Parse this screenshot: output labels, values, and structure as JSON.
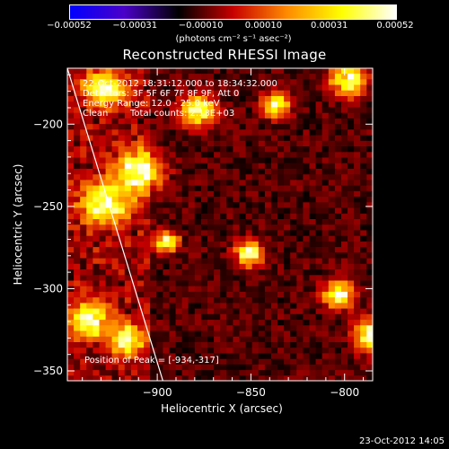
{
  "chart_data": {
    "type": "heatmap",
    "title": "Reconstructed RHESSI Image",
    "xlabel": "Heliocentric X (arcsec)",
    "ylabel": "Heliocentric Y (arcsec)",
    "xlim": [
      -948,
      -785
    ],
    "ylim": [
      -356,
      -166
    ],
    "x_ticks": [
      -900,
      -850,
      -800
    ],
    "x_tick_labels": [
      "−900",
      "−850",
      "−800"
    ],
    "y_ticks": [
      -350,
      -300,
      -250,
      -200
    ],
    "y_tick_labels": [
      "−350",
      "−300",
      "−250",
      "−200"
    ],
    "colorbar": {
      "range": [
        -0.00052,
        0.00052
      ],
      "ticks": [
        -0.00052,
        -0.00031,
        -0.0001,
        0.0001,
        0.00031,
        0.00052
      ],
      "tick_labels": [
        "−0.00052",
        "−0.00031",
        "−0.00010",
        "0.00010",
        "0.00031",
        "0.00052"
      ],
      "units": "(photons cm⁻² s⁻¹ asec⁻²)",
      "colors": [
        "#0000ff",
        "#4b00c8",
        "#000000",
        "#c80000",
        "#ff8c00",
        "#ffff00",
        "#ffffff"
      ]
    },
    "annotations": {
      "time_range": "22-Oct-2012 18:31:12.000 to 18:34:32.000",
      "detectors": "Detectors: 3F 5F 6F 7F 8F 9F, Att 0",
      "energy_range": "Energy Range: 12.0 - 25.0 keV",
      "method_label": "Clean",
      "total_counts": "Total counts: 2.18E+03",
      "peak": "Position of Peak = [-934,-317]"
    },
    "limb_line": {
      "x": [
        -948,
        -897
      ],
      "y": [
        -166,
        -356
      ]
    },
    "bright_regions": [
      {
        "x": -930,
        "y": -250,
        "r": 12
      },
      {
        "x": -912,
        "y": -230,
        "r": 12
      },
      {
        "x": -938,
        "y": -320,
        "r": 10
      },
      {
        "x": -930,
        "y": -180,
        "r": 10
      },
      {
        "x": -880,
        "y": -193,
        "r": 9
      },
      {
        "x": -897,
        "y": -273,
        "r": 6
      },
      {
        "x": -918,
        "y": -332,
        "r": 8
      },
      {
        "x": -805,
        "y": -305,
        "r": 8
      },
      {
        "x": -787,
        "y": -330,
        "r": 9
      },
      {
        "x": -853,
        "y": -280,
        "r": 7
      },
      {
        "x": -838,
        "y": -190,
        "r": 7
      },
      {
        "x": -800,
        "y": -175,
        "r": 9
      }
    ]
  },
  "footer": {
    "date": "23-Oct-2012 14:05"
  }
}
